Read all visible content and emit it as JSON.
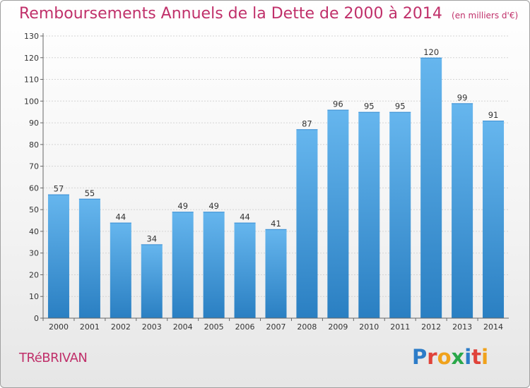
{
  "chart_data": {
    "type": "bar",
    "title": "Remboursements Annuels de la Dette de 2000 à 2014",
    "subtitle": "(en milliers d'€)",
    "xlabel": "",
    "ylabel": "",
    "categories": [
      "2000",
      "2001",
      "2002",
      "2003",
      "2004",
      "2005",
      "2006",
      "2007",
      "2008",
      "2009",
      "2010",
      "2011",
      "2012",
      "2013",
      "2014"
    ],
    "values": [
      57,
      55,
      44,
      34,
      49,
      49,
      44,
      41,
      87,
      96,
      95,
      95,
      120,
      99,
      91
    ],
    "data_labels": [
      "57",
      "55",
      "44",
      "34",
      "49",
      "49",
      "44",
      "41",
      "87",
      "96",
      "95",
      "95",
      "120",
      "99",
      "91"
    ],
    "ylim": [
      0,
      130
    ],
    "yticks": [
      "0",
      "10",
      "20",
      "30",
      "40",
      "50",
      "60",
      "70",
      "80",
      "90",
      "100",
      "110",
      "120",
      "130"
    ],
    "grid": true,
    "legend": "none",
    "colors": {
      "bar_top": "#66b6ee",
      "bar_bottom": "#2a7fc2",
      "title": "#c0306a",
      "grid": "#d4d4d4",
      "axis": "#666666"
    }
  },
  "footer": {
    "commune": "TRéBRIVAN"
  },
  "logo": {
    "text": "Proxiti",
    "letter_colors": [
      "#2c7cc8",
      "#e0433a",
      "#f0a21c",
      "#2aa84a",
      "#2c7cc8",
      "#e0433a",
      "#f0a21c"
    ]
  }
}
